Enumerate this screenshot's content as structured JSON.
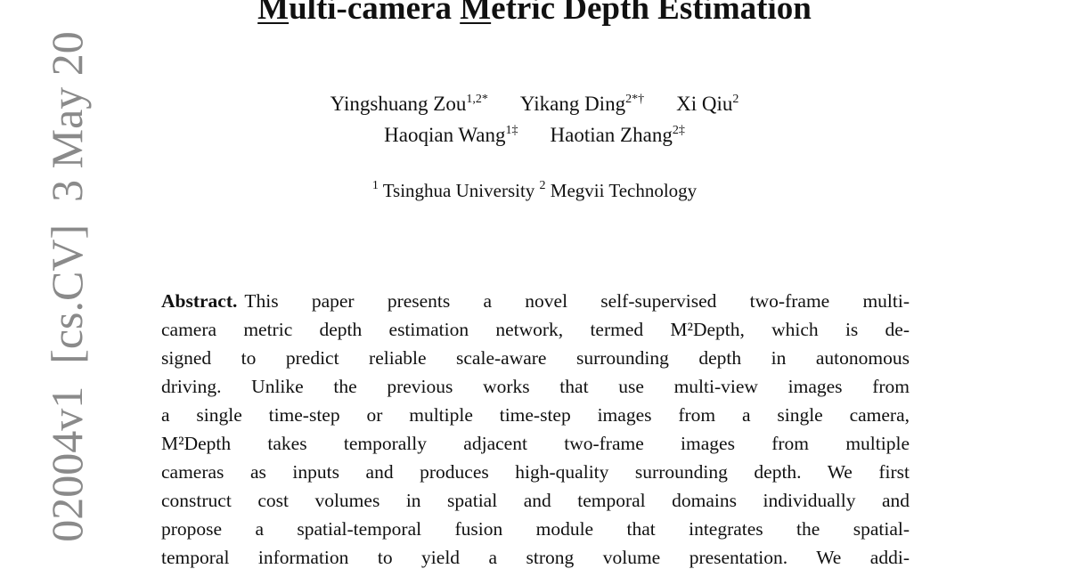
{
  "title": [
    {
      "text": "M",
      "underline": true
    },
    {
      "text": "ulti-camera "
    },
    {
      "text": "M",
      "underline": true
    },
    {
      "text": "etric Depth Estimation"
    }
  ],
  "authors": [
    [
      {
        "name": "Yingshuang Zou",
        "sup": "1,2*"
      },
      {
        "name": "Yikang Ding",
        "sup": "2*†"
      },
      {
        "name": "Xi Qiu",
        "sup": "2"
      }
    ],
    [
      {
        "name": "Haoqian Wang",
        "sup": "1‡"
      },
      {
        "name": "Haotian Zhang",
        "sup": "2‡"
      }
    ]
  ],
  "affiliations": [
    {
      "sup": "1",
      "name": "Tsinghua University"
    },
    {
      "sup": "2",
      "name": "Megvii Technology"
    }
  ],
  "abstract": {
    "label": "Abstract.",
    "lines": [
      "This paper presents a novel self-supervised two-frame multi-",
      "camera metric depth estimation network, termed M²Depth, which is de-",
      "signed to predict reliable scale-aware surrounding depth in autonomous",
      "driving. Unlike the previous works that use multi-view images from",
      "a single time-step or multiple time-step images from a single camera,",
      "M²Depth takes temporally adjacent two-frame images from multiple",
      "cameras as inputs and produces high-quality surrounding depth. We first",
      "construct cost volumes in spatial and temporal domains individually and",
      "propose a spatial-temporal fusion module that integrates the spatial-",
      "temporal information to yield a strong volume presentation. We addi-"
    ]
  },
  "arxiv_stamp": "02004v1  [cs.CV]  3 May 20"
}
